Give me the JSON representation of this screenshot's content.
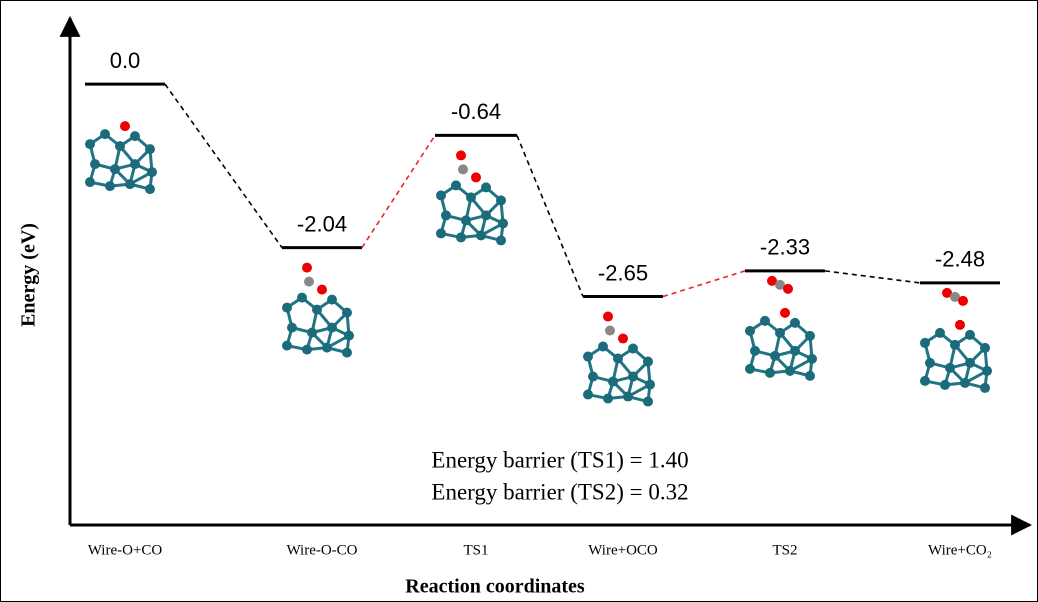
{
  "chart_data": {
    "type": "energy-profile",
    "categories": [
      "Wire-O+CO",
      "Wire-O-CO",
      "TS1",
      "Wire+OCO",
      "TS2",
      "Wire+CO₂"
    ],
    "category_colors": [
      "#000000",
      "#000000",
      "#e0000f",
      "#000000",
      "#e0000f",
      "#000000"
    ],
    "values": [
      0.0,
      -2.04,
      -0.64,
      -2.65,
      -2.33,
      -2.48
    ],
    "value_labels": [
      "0.0",
      "-2.04",
      "-0.64",
      "-2.65",
      "-2.33",
      "-2.48"
    ],
    "connector_colors": [
      "#000000",
      "#e8262a",
      "#000000",
      "#e8262a",
      "#000000"
    ],
    "color": "#000000",
    "ylim": [
      -5.5,
      0.7
    ],
    "ylabel": "Energy (eV)",
    "xlabel": "Reaction coordinates",
    "annotations": [
      "Energy barrier (TS1) = 1.40",
      "Energy barrier (TS2) = 0.32"
    ]
  }
}
